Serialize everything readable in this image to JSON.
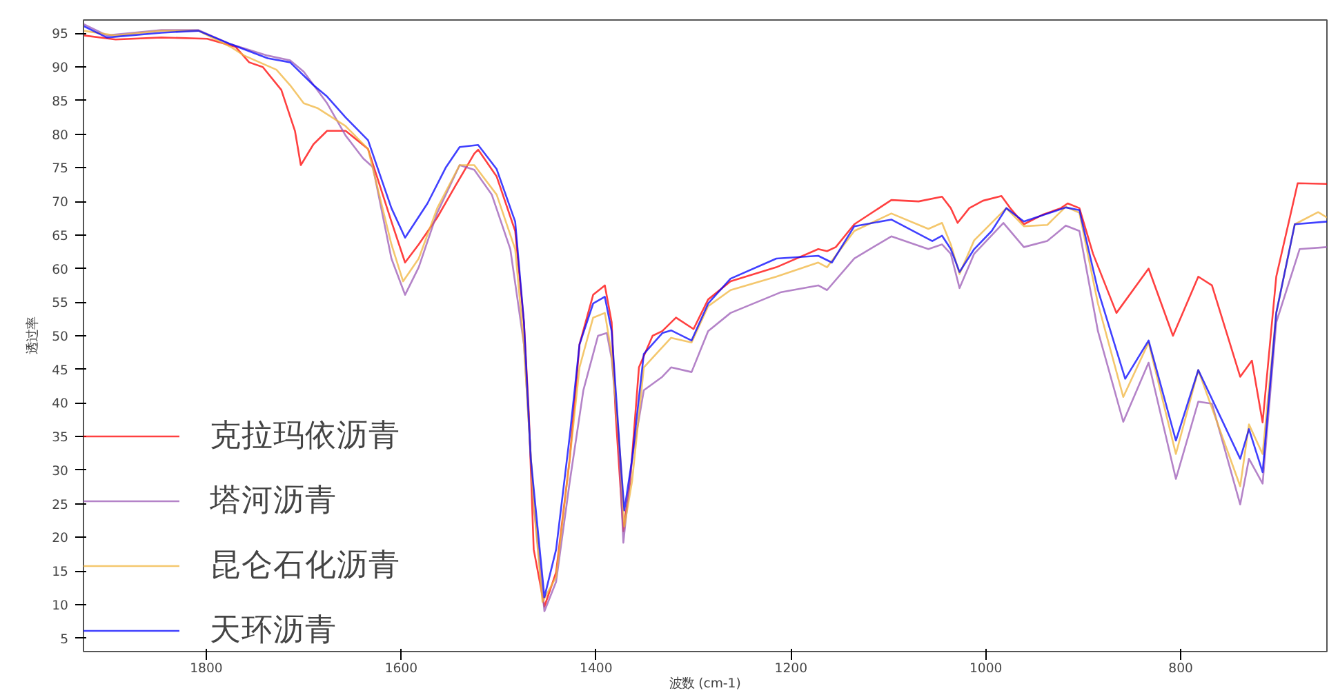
{
  "chart_data": {
    "type": "line",
    "xlabel": "波数 (cm-1)",
    "ylabel": "透过率",
    "xlim": [
      1926,
      650
    ],
    "ylim": [
      3,
      97
    ],
    "xticks": [
      1800,
      1600,
      1400,
      1200,
      1000,
      800
    ],
    "yticks": [
      5,
      10,
      15,
      20,
      25,
      30,
      35,
      40,
      45,
      50,
      55,
      60,
      65,
      70,
      75,
      80,
      85,
      90,
      95
    ],
    "grid": false,
    "legend": "bottom left",
    "marker": "none",
    "line_style": "solid",
    "series": [
      {
        "name": "克拉玛依沥青",
        "color": "#ff0000",
        "x": [
          1926,
          1893,
          1846,
          1799,
          1770,
          1756,
          1742,
          1723,
          1709,
          1703,
          1690,
          1676,
          1657,
          1634,
          1610,
          1596,
          1582,
          1563,
          1544,
          1525,
          1521,
          1502,
          1483,
          1474,
          1469,
          1464,
          1453,
          1441,
          1427,
          1417,
          1403,
          1391,
          1384,
          1380,
          1372,
          1365,
          1356,
          1342,
          1332,
          1318,
          1300,
          1285,
          1262,
          1215,
          1172,
          1163,
          1154,
          1135,
          1097,
          1069,
          1045,
          1036,
          1029,
          1017,
          1003,
          984,
          975,
          961,
          942,
          923,
          916,
          904,
          890,
          866,
          833,
          808,
          782,
          768,
          739,
          727,
          716,
          702,
          680,
          650
        ],
        "values": [
          94.7,
          94.1,
          94.4,
          94.2,
          93.0,
          90.7,
          90.0,
          86.6,
          80.5,
          75.4,
          78.5,
          80.5,
          80.5,
          77.8,
          67.0,
          60.9,
          63.6,
          67.6,
          72.4,
          77.1,
          77.7,
          73.7,
          65.6,
          52.0,
          38.5,
          18.2,
          9.7,
          14.8,
          31.7,
          48.7,
          56.1,
          57.5,
          52.0,
          38.5,
          20.9,
          28.4,
          45.3,
          50.0,
          50.7,
          52.7,
          51.0,
          55.4,
          58.1,
          60.2,
          62.9,
          62.6,
          63.2,
          66.6,
          70.2,
          70.0,
          70.7,
          69.0,
          66.8,
          69.0,
          70.1,
          70.8,
          69.0,
          66.6,
          68.0,
          69.0,
          69.7,
          69.0,
          62.2,
          53.4,
          60.0,
          50.0,
          58.8,
          57.5,
          43.9,
          46.3,
          37.1,
          58.8,
          72.7,
          72.6
        ]
      },
      {
        "name": "塔河沥青",
        "color": "#9b59b6",
        "x": [
          1926,
          1902,
          1846,
          1808,
          1775,
          1737,
          1714,
          1700,
          1676,
          1657,
          1639,
          1629,
          1610,
          1596,
          1582,
          1563,
          1540,
          1525,
          1507,
          1488,
          1474,
          1464,
          1453,
          1441,
          1427,
          1413,
          1398,
          1389,
          1384,
          1377,
          1372,
          1363,
          1351,
          1332,
          1323,
          1302,
          1285,
          1262,
          1210,
          1172,
          1163,
          1135,
          1097,
          1059,
          1045,
          1036,
          1027,
          1012,
          982,
          961,
          937,
          918,
          904,
          885,
          859,
          833,
          805,
          782,
          768,
          739,
          730,
          716,
          702,
          678,
          650
        ],
        "values": [
          96.4,
          94.7,
          95.5,
          95.5,
          93.4,
          91.7,
          91.0,
          89.3,
          84.6,
          79.8,
          76.4,
          75.1,
          61.5,
          56.1,
          60.2,
          68.3,
          75.4,
          74.7,
          71.0,
          62.9,
          48.7,
          25.0,
          9.0,
          13.4,
          28.3,
          41.9,
          50.0,
          50.4,
          46.6,
          35.1,
          19.2,
          31.7,
          41.9,
          43.9,
          45.3,
          44.6,
          50.7,
          53.4,
          56.5,
          57.5,
          56.8,
          61.5,
          64.8,
          62.9,
          63.6,
          62.2,
          57.1,
          62.2,
          66.8,
          63.2,
          64.1,
          66.4,
          65.6,
          50.7,
          37.2,
          46.0,
          28.7,
          40.2,
          39.9,
          24.9,
          31.7,
          28.0,
          52.0,
          62.9,
          63.2
        ]
      },
      {
        "name": "昆仑石化沥青",
        "color": "#f0b43c",
        "x": [
          1926,
          1893,
          1846,
          1808,
          1775,
          1761,
          1728,
          1714,
          1700,
          1686,
          1657,
          1634,
          1610,
          1598,
          1582,
          1563,
          1540,
          1525,
          1502,
          1483,
          1474,
          1464,
          1455,
          1441,
          1427,
          1417,
          1403,
          1391,
          1384,
          1375,
          1371,
          1363,
          1351,
          1332,
          1323,
          1302,
          1285,
          1262,
          1215,
          1172,
          1163,
          1135,
          1097,
          1059,
          1045,
          1036,
          1027,
          1012,
          979,
          961,
          937,
          918,
          904,
          885,
          859,
          833,
          805,
          782,
          739,
          730,
          716,
          702,
          683,
          659,
          650
        ],
        "values": [
          95.4,
          94.7,
          95.4,
          95.4,
          93.0,
          91.7,
          89.6,
          87.3,
          84.6,
          83.9,
          81.2,
          77.8,
          63.6,
          58.1,
          61.5,
          69.0,
          75.4,
          75.4,
          71.0,
          62.9,
          48.7,
          25.0,
          10.4,
          14.1,
          31.7,
          45.3,
          52.7,
          53.4,
          47.3,
          31.7,
          21.6,
          28.4,
          45.3,
          48.3,
          49.7,
          49.0,
          54.4,
          56.8,
          58.8,
          60.9,
          60.2,
          65.6,
          68.2,
          65.9,
          66.8,
          63.6,
          59.2,
          64.2,
          69.0,
          66.3,
          66.5,
          69.2,
          68.3,
          54.8,
          40.9,
          49.0,
          32.4,
          44.9,
          27.6,
          36.8,
          32.4,
          53.4,
          66.6,
          68.4,
          67.6
        ]
      },
      {
        "name": "天环沥青",
        "color": "#0000ff",
        "x": [
          1926,
          1902,
          1846,
          1808,
          1775,
          1737,
          1714,
          1690,
          1676,
          1657,
          1634,
          1610,
          1596,
          1573,
          1554,
          1540,
          1521,
          1502,
          1483,
          1474,
          1467,
          1453,
          1441,
          1427,
          1417,
          1403,
          1391,
          1384,
          1375,
          1371,
          1363,
          1351,
          1332,
          1323,
          1302,
          1285,
          1262,
          1215,
          1172,
          1158,
          1135,
          1097,
          1055,
          1045,
          1036,
          1027,
          1012,
          994,
          979,
          961,
          918,
          904,
          885,
          857,
          833,
          805,
          782,
          739,
          730,
          716,
          702,
          683,
          650
        ],
        "values": [
          96.1,
          94.4,
          95.1,
          95.4,
          93.4,
          91.3,
          90.7,
          87.3,
          85.6,
          82.5,
          79.1,
          69.0,
          64.6,
          69.7,
          75.1,
          78.1,
          78.4,
          74.8,
          67.0,
          52.0,
          31.7,
          11.1,
          18.2,
          35.1,
          48.7,
          54.8,
          55.8,
          50.7,
          31.7,
          24.0,
          31.7,
          47.3,
          50.4,
          50.8,
          49.3,
          54.8,
          58.5,
          61.5,
          61.9,
          60.9,
          66.3,
          67.3,
          64.1,
          64.9,
          62.9,
          59.5,
          62.9,
          65.6,
          69.0,
          67.0,
          69.1,
          68.7,
          56.8,
          43.6,
          49.3,
          34.4,
          44.9,
          31.7,
          36.1,
          29.7,
          53.4,
          66.6,
          67.0
        ]
      }
    ]
  }
}
